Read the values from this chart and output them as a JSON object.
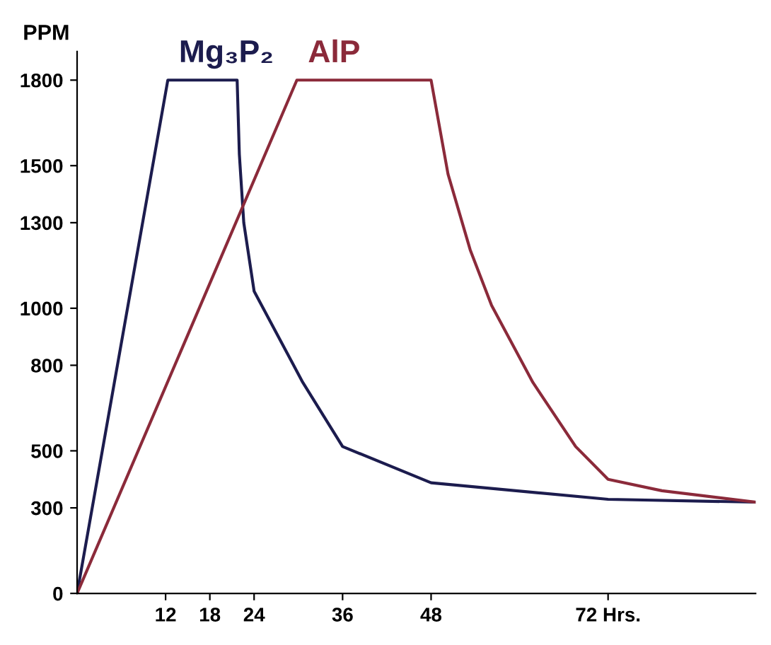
{
  "chart_data": {
    "type": "line",
    "ylabel": "PPM",
    "series": [
      {
        "name": "Mg₃P₂",
        "color": "#1c1c4e",
        "x": [
          0,
          12.3,
          21.7,
          22.0,
          22.6,
          24,
          30.6,
          36,
          48,
          72,
          92
        ],
        "values": [
          0,
          1800,
          1800,
          1540,
          1300,
          1060,
          740,
          515,
          388,
          330,
          320
        ]
      },
      {
        "name": "AlP",
        "color": "#8b2a3a",
        "x": [
          0,
          29.8,
          48,
          50.3,
          53.3,
          56.2,
          61.8,
          67.6,
          72,
          79.3,
          92
        ],
        "values": [
          0,
          1800,
          1800,
          1470,
          1205,
          1010,
          740,
          515,
          400,
          360,
          320
        ]
      }
    ],
    "xlim": [
      0,
      92
    ],
    "ylim": [
      0,
      1900
    ],
    "xticks": [
      12,
      18,
      24,
      36,
      48,
      {
        "value": 72,
        "label": "72 Hrs."
      }
    ],
    "yticks": [
      0,
      300,
      500,
      800,
      1000,
      1300,
      1500,
      1800
    ],
    "grid": false,
    "legend": false,
    "marker": "none",
    "line_style": "solid"
  }
}
